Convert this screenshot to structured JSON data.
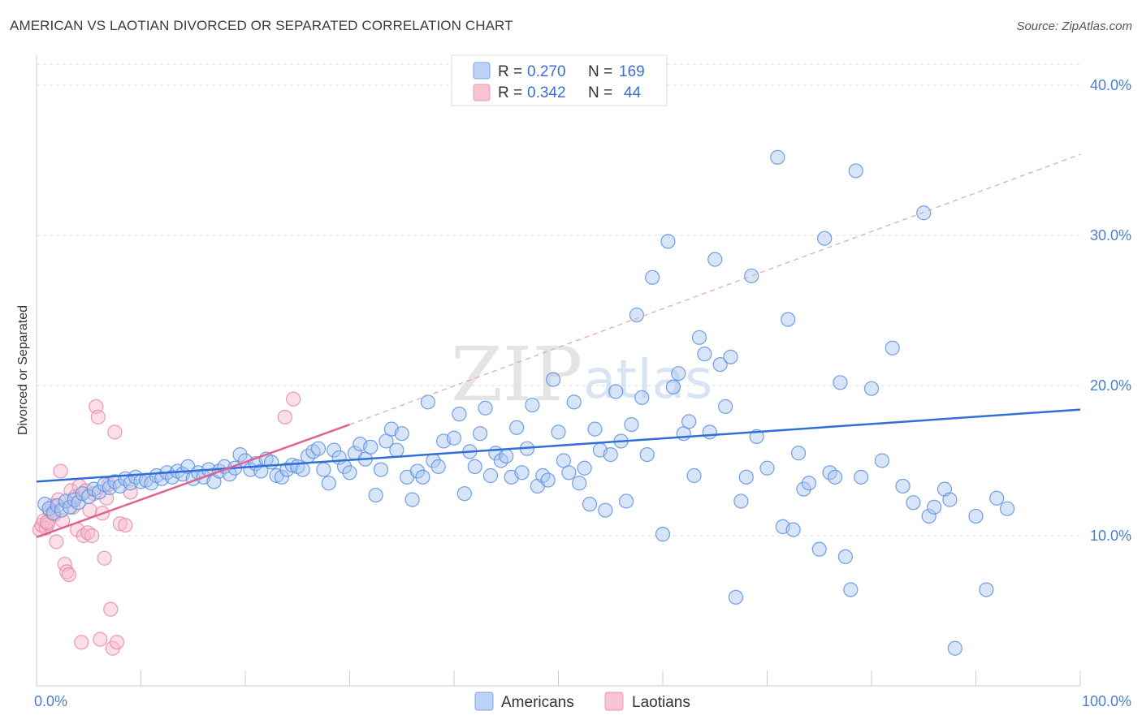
{
  "header": {
    "title": "AMERICAN VS LAOTIAN DIVORCED OR SEPARATED CORRELATION CHART",
    "source": "Source: ZipAtlas.com"
  },
  "watermark": {
    "zip": "ZIP",
    "atlas": "atlas"
  },
  "legend": {
    "r_label": "R =",
    "n_label": "N =",
    "rows": [
      {
        "r": "0.270",
        "n": "169",
        "color": "#5b8fe0"
      },
      {
        "r": "0.342",
        "n": "44",
        "color": "#e8779e"
      }
    ]
  },
  "bottom_legend": [
    "Americans",
    "Laotians"
  ],
  "chart_data": {
    "type": "scatter",
    "title": "AMERICAN VS LAOTIAN DIVORCED OR SEPARATED CORRELATION CHART",
    "ylabel": "Divorced or Separated",
    "xlabel": "",
    "xlim": [
      0,
      100
    ],
    "ylim": [
      0,
      42
    ],
    "x_tick_labels": [
      "0.0%",
      "100.0%"
    ],
    "y_ticks": [
      10,
      20,
      30,
      40
    ],
    "y_tick_labels": [
      "10.0%",
      "20.0%",
      "30.0%",
      "40.0%"
    ],
    "grid": true,
    "legend_position": "top-center",
    "series": [
      {
        "name": "Americans",
        "color": "#5b8fe0",
        "r": 0.27,
        "n": 169,
        "trend": {
          "x0": 0,
          "y0": 13.6,
          "x1": 100,
          "y1": 18.4
        },
        "points": [
          [
            0.8,
            12.1
          ],
          [
            1.2,
            11.8
          ],
          [
            1.6,
            11.5
          ],
          [
            2.0,
            12.0
          ],
          [
            2.4,
            11.7
          ],
          [
            2.8,
            12.3
          ],
          [
            3.2,
            11.9
          ],
          [
            3.6,
            12.4
          ],
          [
            4.0,
            12.2
          ],
          [
            4.4,
            12.8
          ],
          [
            5.0,
            12.6
          ],
          [
            5.5,
            13.1
          ],
          [
            6.0,
            12.9
          ],
          [
            6.5,
            13.4
          ],
          [
            7.0,
            13.2
          ],
          [
            7.5,
            13.6
          ],
          [
            8.0,
            13.3
          ],
          [
            8.5,
            13.8
          ],
          [
            9.0,
            13.5
          ],
          [
            9.5,
            13.9
          ],
          [
            10.0,
            13.6
          ],
          [
            10.5,
            13.7
          ],
          [
            11.0,
            13.5
          ],
          [
            11.5,
            14.0
          ],
          [
            12.0,
            13.8
          ],
          [
            12.5,
            14.2
          ],
          [
            13.0,
            13.9
          ],
          [
            13.5,
            14.3
          ],
          [
            14.0,
            14.1
          ],
          [
            14.5,
            14.6
          ],
          [
            15.0,
            13.8
          ],
          [
            15.5,
            14.2
          ],
          [
            16.0,
            13.9
          ],
          [
            16.5,
            14.4
          ],
          [
            17.0,
            13.6
          ],
          [
            17.5,
            14.3
          ],
          [
            18.0,
            14.6
          ],
          [
            18.5,
            14.1
          ],
          [
            19.0,
            14.5
          ],
          [
            19.5,
            15.4
          ],
          [
            20.0,
            15.0
          ],
          [
            20.5,
            14.4
          ],
          [
            21.0,
            14.8
          ],
          [
            21.5,
            14.3
          ],
          [
            22.0,
            15.1
          ],
          [
            22.5,
            14.9
          ],
          [
            23.0,
            14.0
          ],
          [
            23.5,
            13.9
          ],
          [
            24.0,
            14.4
          ],
          [
            24.5,
            14.7
          ],
          [
            25.0,
            14.6
          ],
          [
            25.5,
            14.4
          ],
          [
            26.0,
            15.3
          ],
          [
            26.5,
            15.6
          ],
          [
            27.0,
            15.8
          ],
          [
            27.5,
            14.4
          ],
          [
            28.0,
            13.5
          ],
          [
            28.5,
            15.7
          ],
          [
            29.0,
            15.2
          ],
          [
            29.5,
            14.6
          ],
          [
            30.0,
            14.2
          ],
          [
            30.5,
            15.5
          ],
          [
            31.0,
            16.1
          ],
          [
            31.5,
            15.1
          ],
          [
            32.0,
            15.9
          ],
          [
            32.5,
            12.7
          ],
          [
            33.0,
            14.4
          ],
          [
            33.5,
            16.3
          ],
          [
            34.0,
            17.1
          ],
          [
            34.5,
            15.7
          ],
          [
            35.0,
            16.8
          ],
          [
            35.5,
            13.9
          ],
          [
            36.0,
            12.4
          ],
          [
            36.5,
            14.3
          ],
          [
            37.0,
            13.9
          ],
          [
            37.5,
            18.9
          ],
          [
            38.0,
            15.0
          ],
          [
            38.5,
            14.6
          ],
          [
            39.0,
            16.3
          ],
          [
            40.0,
            16.5
          ],
          [
            40.5,
            18.1
          ],
          [
            41.0,
            12.8
          ],
          [
            41.5,
            15.6
          ],
          [
            42.0,
            14.6
          ],
          [
            42.5,
            16.8
          ],
          [
            43.0,
            18.5
          ],
          [
            43.5,
            14.0
          ],
          [
            44.0,
            15.5
          ],
          [
            44.5,
            15.0
          ],
          [
            45.0,
            15.3
          ],
          [
            45.5,
            13.9
          ],
          [
            46.0,
            17.2
          ],
          [
            46.5,
            14.2
          ],
          [
            47.0,
            15.8
          ],
          [
            47.5,
            18.7
          ],
          [
            48.0,
            13.3
          ],
          [
            48.5,
            14.0
          ],
          [
            49.0,
            13.7
          ],
          [
            49.5,
            20.4
          ],
          [
            50.0,
            16.9
          ],
          [
            50.5,
            15.0
          ],
          [
            51.0,
            14.2
          ],
          [
            51.5,
            18.9
          ],
          [
            52.0,
            13.5
          ],
          [
            52.5,
            14.5
          ],
          [
            53.0,
            12.1
          ],
          [
            53.5,
            17.1
          ],
          [
            54.0,
            15.7
          ],
          [
            54.5,
            11.7
          ],
          [
            55.0,
            15.4
          ],
          [
            55.5,
            19.6
          ],
          [
            56.0,
            16.3
          ],
          [
            56.5,
            12.3
          ],
          [
            57.0,
            17.4
          ],
          [
            57.5,
            24.7
          ],
          [
            58.0,
            19.2
          ],
          [
            58.5,
            15.4
          ],
          [
            59.0,
            27.2
          ],
          [
            60.0,
            10.1
          ],
          [
            60.5,
            29.6
          ],
          [
            61.0,
            19.9
          ],
          [
            61.5,
            20.8
          ],
          [
            62.0,
            16.8
          ],
          [
            62.5,
            17.6
          ],
          [
            63.0,
            14.0
          ],
          [
            63.5,
            23.2
          ],
          [
            64.0,
            22.1
          ],
          [
            64.5,
            16.9
          ],
          [
            65.0,
            28.4
          ],
          [
            65.5,
            21.4
          ],
          [
            66.0,
            18.6
          ],
          [
            66.5,
            21.9
          ],
          [
            67.0,
            5.9
          ],
          [
            67.5,
            12.3
          ],
          [
            68.0,
            13.9
          ],
          [
            68.5,
            27.3
          ],
          [
            69.0,
            16.6
          ],
          [
            70.0,
            14.5
          ],
          [
            71.0,
            35.2
          ],
          [
            71.5,
            10.6
          ],
          [
            72.0,
            24.4
          ],
          [
            72.5,
            10.4
          ],
          [
            73.0,
            15.5
          ],
          [
            73.5,
            13.1
          ],
          [
            74.0,
            13.5
          ],
          [
            75.0,
            9.1
          ],
          [
            75.5,
            29.8
          ],
          [
            76.0,
            14.2
          ],
          [
            76.5,
            13.9
          ],
          [
            77.0,
            20.2
          ],
          [
            77.5,
            8.6
          ],
          [
            78.0,
            6.4
          ],
          [
            78.5,
            34.3
          ],
          [
            79.0,
            13.9
          ],
          [
            80.0,
            19.8
          ],
          [
            81.0,
            15.0
          ],
          [
            82.0,
            22.5
          ],
          [
            83.0,
            13.3
          ],
          [
            84.0,
            12.2
          ],
          [
            85.0,
            31.5
          ],
          [
            85.5,
            11.3
          ],
          [
            86.0,
            11.9
          ],
          [
            87.0,
            13.1
          ],
          [
            87.5,
            12.4
          ],
          [
            88.0,
            2.5
          ],
          [
            90.0,
            11.3
          ],
          [
            91.0,
            6.4
          ],
          [
            92.0,
            12.5
          ],
          [
            93.0,
            11.8
          ]
        ]
      },
      {
        "name": "Laotians",
        "color": "#e8779e",
        "r": 0.342,
        "n": 44,
        "trend": {
          "x0": 0,
          "y0": 9.9,
          "x1": 30,
          "y1": 17.4
        },
        "extrapolation": {
          "x0": 30,
          "y0": 17.4,
          "x1": 100,
          "y1": 35.4
        },
        "points": [
          [
            0.3,
            10.4
          ],
          [
            0.5,
            10.7
          ],
          [
            0.7,
            11.0
          ],
          [
            0.9,
            10.5
          ],
          [
            1.1,
            10.8
          ],
          [
            1.3,
            11.6
          ],
          [
            1.5,
            12.0
          ],
          [
            1.7,
            11.4
          ],
          [
            1.9,
            9.6
          ],
          [
            2.1,
            12.4
          ],
          [
            2.3,
            14.3
          ],
          [
            2.5,
            11.0
          ],
          [
            2.7,
            8.1
          ],
          [
            2.9,
            7.6
          ],
          [
            3.1,
            7.4
          ],
          [
            3.3,
            13.0
          ],
          [
            3.5,
            11.9
          ],
          [
            3.7,
            12.6
          ],
          [
            3.9,
            10.4
          ],
          [
            4.1,
            13.3
          ],
          [
            4.3,
            2.9
          ],
          [
            4.5,
            10.0
          ],
          [
            4.7,
            13.0
          ],
          [
            4.9,
            10.2
          ],
          [
            5.1,
            11.7
          ],
          [
            5.3,
            10.0
          ],
          [
            5.5,
            12.8
          ],
          [
            5.7,
            18.6
          ],
          [
            5.9,
            17.9
          ],
          [
            6.1,
            3.1
          ],
          [
            6.3,
            11.5
          ],
          [
            6.5,
            8.5
          ],
          [
            6.7,
            12.5
          ],
          [
            6.9,
            13.4
          ],
          [
            7.1,
            5.1
          ],
          [
            7.3,
            2.5
          ],
          [
            7.5,
            16.9
          ],
          [
            7.7,
            2.9
          ],
          [
            8.0,
            10.8
          ],
          [
            8.5,
            10.7
          ],
          [
            9.0,
            12.9
          ],
          [
            23.8,
            17.9
          ],
          [
            24.6,
            19.1
          ],
          [
            1.0,
            10.9
          ]
        ]
      }
    ]
  }
}
